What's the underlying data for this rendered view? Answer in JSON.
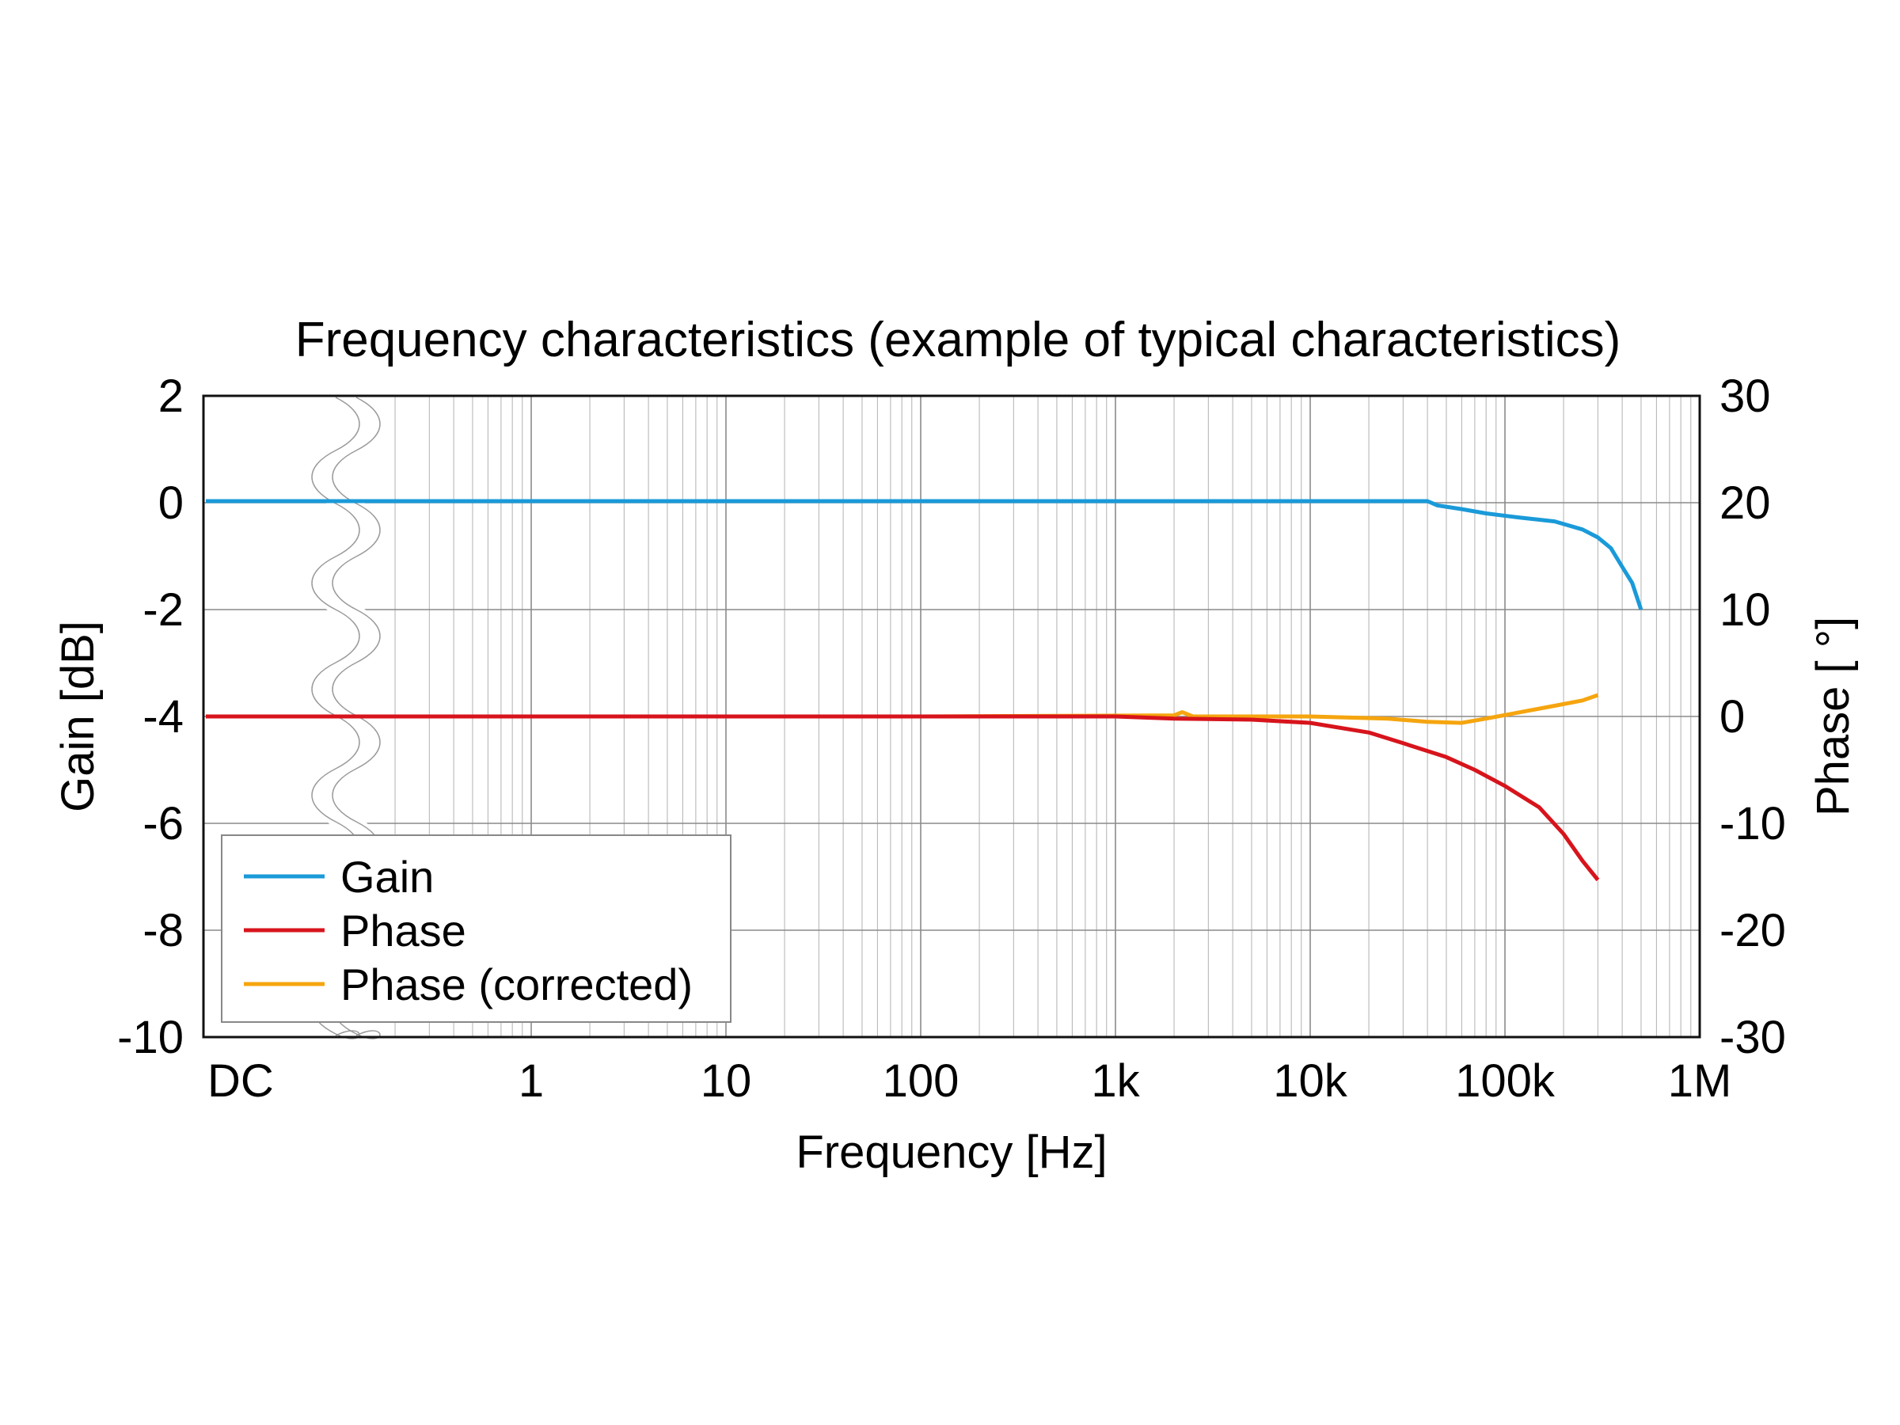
{
  "chart_data": {
    "type": "line",
    "title": "Frequency characteristics (example of typical characteristics)",
    "xlabel": "Frequency [Hz]",
    "ylabel": "Gain [dB]",
    "y2label": "Phase [ °]",
    "x_scale": "log",
    "x_axis_break": "DC",
    "x_ticks": [
      {
        "label": "DC",
        "value": "DC"
      },
      {
        "label": "1",
        "value": 1
      },
      {
        "label": "10",
        "value": 10
      },
      {
        "label": "100",
        "value": 100
      },
      {
        "label": "1k",
        "value": 1000
      },
      {
        "label": "10k",
        "value": 10000
      },
      {
        "label": "100k",
        "value": 100000
      },
      {
        "label": "1M",
        "value": 1000000
      }
    ],
    "xlim": [
      0.1,
      1000000
    ],
    "ylim": [
      -10,
      2
    ],
    "y_ticks": [
      2,
      0,
      -2,
      -4,
      -6,
      -8,
      -10
    ],
    "y2lim": [
      -30,
      30
    ],
    "y2_ticks": [
      30,
      20,
      10,
      0,
      -10,
      -20,
      -30
    ],
    "grid": true,
    "legend_position": "bottom-left",
    "series": [
      {
        "name": "Gain",
        "axis": "left",
        "color": "#1a9ad9",
        "points": [
          [
            "DC",
            0.03
          ],
          [
            1,
            0.03
          ],
          [
            100,
            0.03
          ],
          [
            10000,
            0.03
          ],
          [
            40000,
            0.03
          ],
          [
            45000,
            -0.05
          ],
          [
            60000,
            -0.12
          ],
          [
            80000,
            -0.2
          ],
          [
            120000,
            -0.28
          ],
          [
            180000,
            -0.35
          ],
          [
            250000,
            -0.5
          ],
          [
            300000,
            -0.65
          ],
          [
            350000,
            -0.85
          ],
          [
            400000,
            -1.2
          ],
          [
            450000,
            -1.5
          ],
          [
            500000,
            -2.0
          ]
        ]
      },
      {
        "name": "Phase",
        "axis": "right",
        "color": "#d7141c",
        "points": [
          [
            "DC",
            0.0
          ],
          [
            1,
            0.0
          ],
          [
            100,
            0.0
          ],
          [
            1000,
            0.0
          ],
          [
            2000,
            -0.2
          ],
          [
            5000,
            -0.3
          ],
          [
            10000,
            -0.6
          ],
          [
            20000,
            -1.5
          ],
          [
            30000,
            -2.5
          ],
          [
            50000,
            -3.8
          ],
          [
            70000,
            -5.0
          ],
          [
            100000,
            -6.5
          ],
          [
            150000,
            -8.5
          ],
          [
            200000,
            -11.0
          ],
          [
            250000,
            -13.5
          ],
          [
            300000,
            -15.3
          ]
        ]
      },
      {
        "name": "Phase (corrected)",
        "axis": "right",
        "color": "#f5a50f",
        "points": [
          [
            "DC",
            0.0
          ],
          [
            1,
            0.0
          ],
          [
            100,
            0.0
          ],
          [
            2000,
            0.1
          ],
          [
            2200,
            0.4
          ],
          [
            2500,
            0.0
          ],
          [
            10000,
            0.0
          ],
          [
            25000,
            -0.2
          ],
          [
            40000,
            -0.5
          ],
          [
            60000,
            -0.6
          ],
          [
            80000,
            -0.2
          ],
          [
            120000,
            0.4
          ],
          [
            180000,
            1.0
          ],
          [
            250000,
            1.5
          ],
          [
            300000,
            2.0
          ]
        ]
      }
    ]
  }
}
